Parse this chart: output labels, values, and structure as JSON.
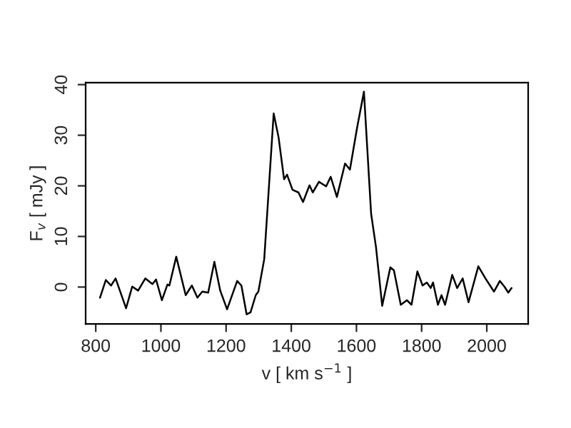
{
  "chart_data": {
    "type": "line",
    "xlabel": "v [ km s$^{−1}$ ]",
    "ylabel": "F$_{v}$ [ mJy ]",
    "x": [
      813,
      831,
      847,
      861,
      893,
      912,
      930,
      952,
      974,
      985,
      1003,
      1020,
      1026,
      1047,
      1076,
      1095,
      1112,
      1127,
      1145,
      1164,
      1182,
      1203,
      1234,
      1247,
      1263,
      1275,
      1291,
      1299,
      1317,
      1346,
      1361,
      1378,
      1387,
      1404,
      1422,
      1436,
      1456,
      1466,
      1485,
      1507,
      1521,
      1540,
      1565,
      1580,
      1602,
      1623,
      1645,
      1660,
      1679,
      1704,
      1715,
      1736,
      1755,
      1769,
      1787,
      1803,
      1816,
      1828,
      1835,
      1850,
      1861,
      1872,
      1894,
      1909,
      1926,
      1944,
      1974,
      1996,
      2022,
      2040,
      2054,
      2066,
      2076
    ],
    "series": [
      {
        "color": "#000000",
        "values": [
          -2.1,
          1.4,
          0.3,
          1.7,
          -4.2,
          0.1,
          -0.7,
          1.7,
          0.6,
          1.5,
          -2.6,
          0.5,
          0.3,
          6.0,
          -1.6,
          0.3,
          -2.1,
          -0.9,
          -1.1,
          5.0,
          -0.7,
          -4.4,
          1.2,
          0.3,
          -5.4,
          -5.0,
          -1.6,
          -0.9,
          5.5,
          34.3,
          29.6,
          21.3,
          22.2,
          19.2,
          18.7,
          16.8,
          20.1,
          18.7,
          20.8,
          19.9,
          21.8,
          17.8,
          24.4,
          23.2,
          31.5,
          38.6,
          14.5,
          7.9,
          -3.7,
          3.9,
          3.3,
          -3.5,
          -2.6,
          -3.5,
          3.1,
          0.3,
          0.9,
          -0.2,
          0.9,
          -3.5,
          -1.6,
          -3.5,
          2.4,
          -0.2,
          1.7,
          -3.0,
          4.1,
          1.7,
          -0.9,
          1.2,
          0.1,
          -1.1,
          -0.2
        ]
      }
    ],
    "xlim": [
      769,
      2127
    ],
    "ylim": [
      -7.3,
      40.4
    ],
    "xticks": [
      800,
      1000,
      1200,
      1400,
      1600,
      1800,
      2000
    ],
    "yticks": [
      0,
      10,
      20,
      30,
      40
    ],
    "grid": false,
    "legend": false,
    "line_style": "solid",
    "marker": "none"
  }
}
